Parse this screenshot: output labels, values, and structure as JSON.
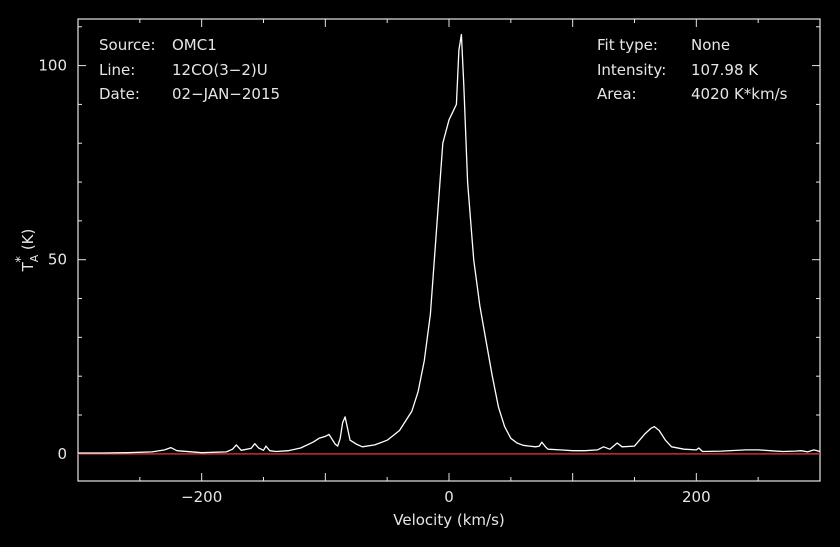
{
  "info_left": [
    {
      "key": "Source:",
      "value": "OMC1"
    },
    {
      "key": "Line:",
      "value": "12CO(3−2)U"
    },
    {
      "key": "Date:",
      "value": "02−JAN−2015"
    }
  ],
  "info_right": [
    {
      "key": "Fit type:",
      "value": "None"
    },
    {
      "key": "Intensity:",
      "value": "107.98 K"
    },
    {
      "key": "Area:",
      "value": "4020 K*km/s"
    }
  ],
  "colors": {
    "background": "#000000",
    "axes": "#e6e6e6",
    "spectrum": "#ffffff",
    "baseline": "#c03030"
  },
  "chart_data": {
    "type": "line",
    "xlabel": "Velocity (km/s)",
    "ylabel_main": "T",
    "ylabel_sub": "A",
    "ylabel_sup": "*",
    "ylabel_unit": "(K)",
    "xlim": [
      -300,
      300
    ],
    "ylim": [
      -7,
      112
    ],
    "xticks": [
      -200,
      0,
      200
    ],
    "xtick_labels": [
      "−200",
      "0",
      "200"
    ],
    "yticks": [
      0,
      50,
      100
    ],
    "ytick_labels": [
      "0",
      "50",
      "100"
    ],
    "grid": false,
    "series": [
      {
        "x": [
          -300,
          -280,
          -260,
          -240,
          -230,
          -225,
          -220,
          -200,
          -180,
          -175,
          -172,
          -168,
          -160,
          -157,
          -154,
          -150,
          -148,
          -145,
          -140,
          -130,
          -120,
          -110,
          -105,
          -100,
          -97,
          -95,
          -92,
          -90,
          -88,
          -86,
          -84,
          -80,
          -75,
          -70,
          -60,
          -50,
          -40,
          -30,
          -25,
          -20,
          -15,
          -10,
          -5,
          0,
          3,
          6,
          8,
          10,
          12,
          15,
          20,
          25,
          30,
          35,
          40,
          45,
          50,
          55,
          60,
          65,
          70,
          73,
          75,
          78,
          80,
          90,
          100,
          110,
          120,
          125,
          130,
          133,
          136,
          140,
          150,
          158,
          163,
          166,
          170,
          175,
          180,
          190,
          200,
          202,
          205,
          220,
          240,
          250,
          260,
          270,
          280,
          285,
          290,
          295,
          300
        ],
        "y": [
          0.2,
          0.2,
          0.3,
          0.5,
          1.0,
          1.6,
          0.8,
          0.3,
          0.5,
          1.2,
          2.3,
          0.9,
          1.4,
          2.6,
          1.5,
          0.9,
          2.0,
          0.8,
          0.6,
          0.8,
          1.5,
          3.0,
          4.0,
          4.5,
          5.0,
          4.0,
          2.5,
          2.0,
          4.0,
          8.0,
          9.5,
          3.5,
          2.5,
          1.8,
          2.3,
          3.5,
          6.0,
          11.0,
          16.0,
          24.0,
          36.0,
          58.0,
          80.0,
          86.0,
          88.0,
          90.0,
          104.0,
          108.0,
          95.0,
          70.0,
          50.0,
          38.0,
          29.0,
          20.0,
          12.0,
          7.0,
          4.0,
          2.8,
          2.2,
          2.0,
          1.8,
          2.0,
          3.0,
          1.8,
          1.2,
          1.0,
          0.8,
          0.8,
          1.0,
          1.8,
          1.2,
          2.0,
          2.8,
          1.8,
          2.0,
          5.0,
          6.5,
          7.0,
          6.0,
          3.5,
          1.8,
          1.2,
          1.0,
          1.5,
          0.6,
          0.7,
          1.0,
          1.0,
          0.8,
          0.6,
          0.7,
          0.8,
          0.5,
          1.0,
          0.6
        ]
      }
    ],
    "baseline": 0
  }
}
